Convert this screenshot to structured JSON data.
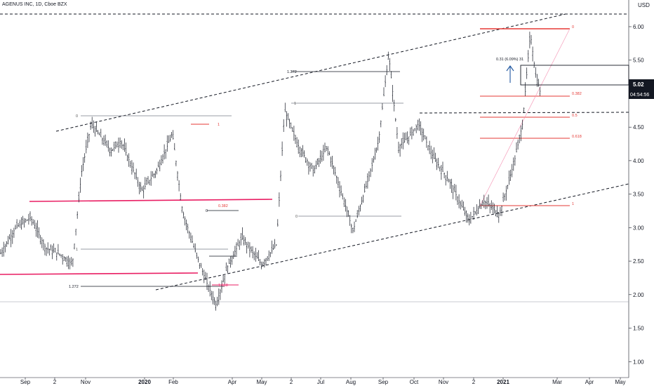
{
  "header": {
    "title": "AGENUS INC, 1D, Cboe BZX",
    "currency": "USD"
  },
  "price_badges": {
    "last_price": "5.02",
    "countdown": "04:54:56"
  },
  "annotations": {
    "fib_labels": [
      {
        "id": "fib-a-0",
        "text": "0",
        "price": 4.55,
        "color": "#555555"
      },
      {
        "id": "fib-a-1",
        "text": "1",
        "price": 2.39,
        "color": "#555555"
      },
      {
        "id": "fib-a-1272",
        "text": "1.272",
        "price": 1.8,
        "color": "#131722"
      },
      {
        "id": "fib-b-1",
        "text": "1",
        "price": 4.43,
        "color": "#e53935"
      },
      {
        "id": "fib-b-0",
        "text": "0",
        "price": 3.03,
        "color": "#131722"
      },
      {
        "id": "fib-b-0382",
        "text": "0.382",
        "price": 3.03,
        "color": "#e53935"
      },
      {
        "id": "fib-b-1618",
        "text": "1.618",
        "price": 1.81,
        "color": "#e91e63"
      },
      {
        "id": "fib-c-1272",
        "text": "1.272",
        "price": 5.27,
        "color": "#131722"
      },
      {
        "id": "fib-c-1",
        "text": "1",
        "price": 4.77,
        "color": "#555555"
      },
      {
        "id": "fib-c-0",
        "text": "0",
        "price": 2.95,
        "color": "#555555"
      },
      {
        "id": "fib-d-0",
        "text": "0",
        "price": 5.97,
        "color": "#e53935"
      },
      {
        "id": "fib-d-0382",
        "text": "0.382",
        "price": 4.86,
        "color": "#e53935"
      },
      {
        "id": "fib-d-05",
        "text": "0.5",
        "price": 4.53,
        "color": "#e53935"
      },
      {
        "id": "fib-d-0618",
        "text": "0.618",
        "price": 4.19,
        "color": "#e53935"
      },
      {
        "id": "fib-d-1",
        "text": "1",
        "price": 3.1,
        "color": "#e53935"
      }
    ],
    "measure_label": "0.31 (6.09%) 31"
  },
  "chart_data": {
    "type": "bar",
    "subtype": "ohlc",
    "title": "AGENUS INC, 1D, Cboe BZX",
    "xlabel": "",
    "ylabel": "",
    "y_axis": {
      "min": 0.45,
      "max": 6.2,
      "position": "right",
      "ticks": [
        "6.00",
        "5.50",
        "5.00",
        "4.50",
        "4.00",
        "3.50",
        "3.00",
        "2.50",
        "2.00",
        "1.50",
        "1.00",
        "0.50"
      ]
    },
    "x_axis": {
      "ticks": [
        "Sep",
        "2",
        "Nov",
        "2020",
        "Feb",
        "Apr",
        "May",
        "2",
        "Jul",
        "Aug",
        "Sep",
        "Oct",
        "Nov",
        "2",
        "2021",
        "Mar",
        "Apr",
        "May"
      ]
    },
    "grid": false,
    "colors": {
      "bars": "#131722",
      "channel": "#131722",
      "support_lines": "#e91e63",
      "fib_red": "#e53935",
      "arrow": "#1e56a0"
    },
    "price_path": [
      [
        "2019-08-20",
        2.6
      ],
      [
        "2019-09-05",
        3.0
      ],
      [
        "2019-09-20",
        3.15
      ],
      [
        "2019-10-05",
        2.7
      ],
      [
        "2019-10-20",
        2.6
      ],
      [
        "2019-11-01",
        2.45
      ],
      [
        "2019-11-10",
        3.8
      ],
      [
        "2019-11-20",
        4.55
      ],
      [
        "2019-12-10",
        4.15
      ],
      [
        "2019-12-20",
        4.3
      ],
      [
        "2020-01-10",
        3.55
      ],
      [
        "2020-01-25",
        3.85
      ],
      [
        "2020-02-10",
        4.4
      ],
      [
        "2020-02-20",
        3.25
      ],
      [
        "2020-03-05",
        2.6
      ],
      [
        "2020-03-15",
        2.2
      ],
      [
        "2020-03-25",
        1.85
      ],
      [
        "2020-04-05",
        2.4
      ],
      [
        "2020-04-20",
        2.85
      ],
      [
        "2020-05-10",
        2.45
      ],
      [
        "2020-05-25",
        2.75
      ],
      [
        "2020-06-02",
        4.75
      ],
      [
        "2020-06-15",
        4.25
      ],
      [
        "2020-07-01",
        3.85
      ],
      [
        "2020-07-15",
        4.2
      ],
      [
        "2020-08-01",
        3.4
      ],
      [
        "2020-08-10",
        2.95
      ],
      [
        "2020-08-25",
        3.7
      ],
      [
        "2020-09-05",
        4.3
      ],
      [
        "2020-09-15",
        5.6
      ],
      [
        "2020-09-25",
        4.2
      ],
      [
        "2020-10-05",
        4.35
      ],
      [
        "2020-10-15",
        4.55
      ],
      [
        "2020-10-30",
        4.05
      ],
      [
        "2020-11-15",
        3.7
      ],
      [
        "2020-11-30",
        3.25
      ],
      [
        "2020-12-05",
        3.1
      ],
      [
        "2020-12-20",
        3.4
      ],
      [
        "2021-01-05",
        3.2
      ],
      [
        "2021-01-20",
        4.0
      ],
      [
        "2021-01-28",
        4.55
      ],
      [
        "2021-02-05",
        5.9
      ],
      [
        "2021-02-10",
        5.3
      ],
      [
        "2021-02-15",
        5.02
      ]
    ]
  }
}
